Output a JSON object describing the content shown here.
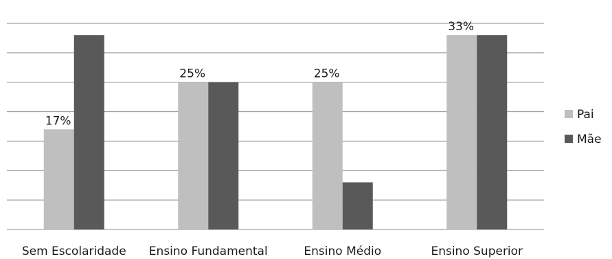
{
  "chart_data": {
    "type": "bar",
    "title": "",
    "xlabel": "",
    "ylabel": "",
    "categories": [
      "Sem Escolaridade",
      "Ensino Fundamental",
      "Ensino Médio",
      "Ensino Superior"
    ],
    "ylim": [
      0,
      0.35
    ],
    "grid": true,
    "legend_position": "right",
    "series": [
      {
        "name": "Pai",
        "color": "#bfbfbf",
        "values": [
          0.17,
          0.25,
          0.25,
          0.33
        ],
        "labels": [
          "17%",
          "25%",
          "25%",
          "33%"
        ]
      },
      {
        "name": "Mãe",
        "color": "#595959",
        "values": [
          0.33,
          0.25,
          0.08,
          0.33
        ],
        "labels": [
          "",
          "",
          "",
          ""
        ]
      }
    ]
  }
}
